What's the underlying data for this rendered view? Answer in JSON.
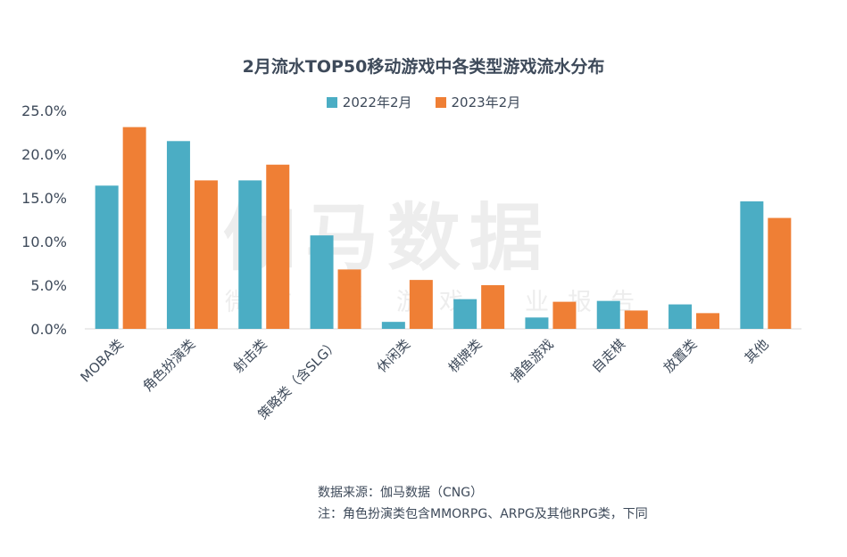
{
  "footer": {
    "source": "数据来源：伽马数据（CNG）",
    "note": "注：角色扮演类包含MMORPG、ARPG及其他RPG类，下同"
  },
  "watermark": {
    "main": "伽马数据",
    "sub": "微信号：游戏产业报告"
  },
  "colors": {
    "series_2022": "#4badc4",
    "series_2023": "#ef7f35",
    "axis": "#d9d9d9",
    "text": "#3e4a5a"
  },
  "chart_data": {
    "type": "bar",
    "title": "2月流水TOP50移动游戏中各类型游戏流水分布",
    "xlabel": "",
    "ylabel": "",
    "ylim": [
      0,
      25
    ],
    "yticks": [
      "0.0%",
      "5.0%",
      "10.0%",
      "15.0%",
      "20.0%",
      "25.0%"
    ],
    "grid": false,
    "legend_position": "top-center",
    "categories": [
      "MOBA类",
      "角色扮演类",
      "射击类",
      "策略类（含SLG）",
      "休闲类",
      "棋牌类",
      "捕鱼游戏",
      "自走棋",
      "放置类",
      "其他"
    ],
    "series": [
      {
        "name": "2022年2月",
        "values": [
          16.4,
          21.5,
          17.0,
          10.7,
          0.8,
          3.4,
          1.3,
          3.2,
          2.8,
          14.6
        ]
      },
      {
        "name": "2023年2月",
        "values": [
          23.1,
          17.0,
          18.8,
          6.8,
          5.6,
          5.0,
          3.1,
          2.1,
          1.8,
          12.7
        ]
      }
    ]
  }
}
